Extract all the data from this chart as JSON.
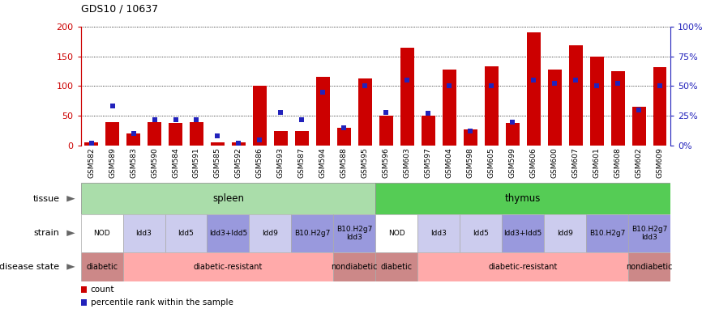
{
  "title": "GDS10 / 10637",
  "samples": [
    "GSM582",
    "GSM589",
    "GSM583",
    "GSM590",
    "GSM584",
    "GSM591",
    "GSM585",
    "GSM592",
    "GSM586",
    "GSM593",
    "GSM587",
    "GSM594",
    "GSM588",
    "GSM595",
    "GSM596",
    "GSM603",
    "GSM597",
    "GSM604",
    "GSM598",
    "GSM605",
    "GSM599",
    "GSM606",
    "GSM600",
    "GSM607",
    "GSM601",
    "GSM608",
    "GSM602",
    "GSM609"
  ],
  "count": [
    5,
    40,
    20,
    40,
    38,
    40,
    5,
    5,
    100,
    25,
    25,
    115,
    30,
    113,
    50,
    165,
    50,
    128,
    27,
    133,
    38,
    190,
    128,
    168,
    150,
    125,
    65,
    132
  ],
  "percentile": [
    2,
    33,
    10,
    22,
    22,
    22,
    8,
    2,
    5,
    28,
    22,
    45,
    15,
    50,
    28,
    55,
    27,
    50,
    12,
    50,
    20,
    55,
    52,
    55,
    50,
    52,
    30,
    50
  ],
  "ylim_left": [
    0,
    200
  ],
  "ylim_right": [
    0,
    100
  ],
  "yticks_left": [
    0,
    50,
    100,
    150,
    200
  ],
  "yticks_right": [
    0,
    25,
    50,
    75,
    100
  ],
  "ytick_labels_left": [
    "0",
    "50",
    "100",
    "150",
    "200"
  ],
  "ytick_labels_right": [
    "0%",
    "25%",
    "50%",
    "75%",
    "100%"
  ],
  "bar_color_red": "#cc0000",
  "bar_color_blue": "#2222bb",
  "tissue_spleen_color": "#aaddaa",
  "tissue_thymus_color": "#55cc55",
  "tissue_row": [
    {
      "label": "spleen",
      "start": 0,
      "end": 14,
      "color": "#aaddaa"
    },
    {
      "label": "thymus",
      "start": 14,
      "end": 28,
      "color": "#55cc55"
    }
  ],
  "strain_row": [
    {
      "label": "NOD",
      "start": 0,
      "end": 2,
      "color": "#ffffff"
    },
    {
      "label": "Idd3",
      "start": 2,
      "end": 4,
      "color": "#ccccee"
    },
    {
      "label": "Idd5",
      "start": 4,
      "end": 6,
      "color": "#ccccee"
    },
    {
      "label": "Idd3+Idd5",
      "start": 6,
      "end": 8,
      "color": "#9999dd"
    },
    {
      "label": "Idd9",
      "start": 8,
      "end": 10,
      "color": "#ccccee"
    },
    {
      "label": "B10.H2g7",
      "start": 10,
      "end": 12,
      "color": "#9999dd"
    },
    {
      "label": "B10.H2g7\nIdd3",
      "start": 12,
      "end": 14,
      "color": "#9999dd"
    },
    {
      "label": "NOD",
      "start": 14,
      "end": 16,
      "color": "#ffffff"
    },
    {
      "label": "Idd3",
      "start": 16,
      "end": 18,
      "color": "#ccccee"
    },
    {
      "label": "Idd5",
      "start": 18,
      "end": 20,
      "color": "#ccccee"
    },
    {
      "label": "Idd3+Idd5",
      "start": 20,
      "end": 22,
      "color": "#9999dd"
    },
    {
      "label": "Idd9",
      "start": 22,
      "end": 24,
      "color": "#ccccee"
    },
    {
      "label": "B10.H2g7",
      "start": 24,
      "end": 26,
      "color": "#9999dd"
    },
    {
      "label": "B10.H2g7\nIdd3",
      "start": 26,
      "end": 28,
      "color": "#9999dd"
    }
  ],
  "disease_row": [
    {
      "label": "diabetic",
      "start": 0,
      "end": 2,
      "color": "#cc8888"
    },
    {
      "label": "diabetic-resistant",
      "start": 2,
      "end": 12,
      "color": "#ffaaaa"
    },
    {
      "label": "nondiabetic",
      "start": 12,
      "end": 14,
      "color": "#cc8888"
    },
    {
      "label": "diabetic",
      "start": 14,
      "end": 16,
      "color": "#cc8888"
    },
    {
      "label": "diabetic-resistant",
      "start": 16,
      "end": 26,
      "color": "#ffaaaa"
    },
    {
      "label": "nondiabetic",
      "start": 26,
      "end": 28,
      "color": "#cc8888"
    }
  ],
  "legend_items": [
    {
      "color": "#cc0000",
      "label": "count"
    },
    {
      "color": "#2222bb",
      "label": "percentile rank within the sample"
    }
  ]
}
